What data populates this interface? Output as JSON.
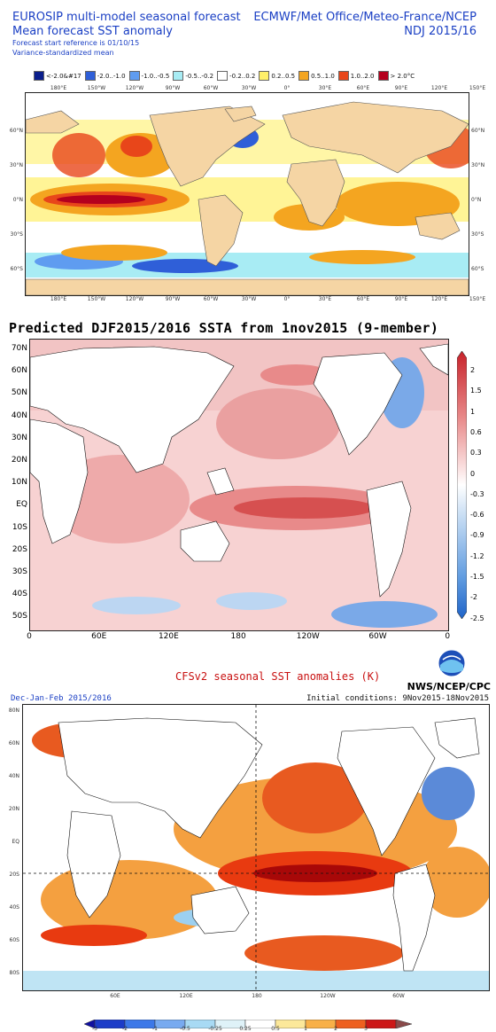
{
  "panel1": {
    "title_left_1": "EUROSIP multi-model seasonal forecast",
    "title_left_2": "Mean forecast SST anomaly",
    "note_1": "Forecast start reference is 01/10/15",
    "note_2": "Variance-standardized mean",
    "title_right_1": "ECMWF/Met Office/Meteo-France/NCEP",
    "title_right_2": "NDJ 2015/16",
    "legend": [
      {
        "label": "<-2.0&#17",
        "color": "#0a1e8c"
      },
      {
        "label": "-2.0..-1.0",
        "color": "#2f5fd8"
      },
      {
        "label": "-1.0..-0.5",
        "color": "#5f9cf0"
      },
      {
        "label": "-0.5..-0.2",
        "color": "#a8ecf4"
      },
      {
        "label": "-0.2..0.2",
        "color": "#ffffff"
      },
      {
        "label": "0.2..0.5",
        "color": "#fff06a"
      },
      {
        "label": "0.5..1.0",
        "color": "#f4a520"
      },
      {
        "label": "1.0..2.0",
        "color": "#e8461a"
      },
      {
        "label": "> 2.0°C",
        "color": "#b4001e"
      }
    ],
    "lon_labels": [
      "180°E",
      "150°W",
      "120°W",
      "90°W",
      "60°W",
      "30°W",
      "0°",
      "30°E",
      "60°E",
      "90°E",
      "120°E",
      "150°E"
    ],
    "lat_labels": [
      "60°N",
      "30°N",
      "0°N",
      "30°S",
      "60°S"
    ]
  },
  "panel2": {
    "title": "Predicted DJF2015/2016 SSTA from 1nov2015 (9-member)",
    "lat_labels": [
      "70N",
      "60N",
      "50N",
      "40N",
      "30N",
      "20N",
      "10N",
      "EQ",
      "10S",
      "20S",
      "30S",
      "40S",
      "50S"
    ],
    "lon_labels": [
      "0",
      "60E",
      "120E",
      "180",
      "120W",
      "60W",
      "0"
    ],
    "colorbar_labels": [
      "2",
      "1.5",
      "1",
      "0.6",
      "0.3",
      "0",
      "-0.3",
      "-0.6",
      "-0.9",
      "-1.2",
      "-1.5",
      "-2",
      "-2.5"
    ]
  },
  "panel3": {
    "title": "CFSv2 seasonal SST anomalies (K)",
    "agency": "NWS/NCEP/CPC",
    "subtitle_left": "Dec-Jan-Feb 2015/2016",
    "subtitle_right": "Initial conditions: 9Nov2015-18Nov2015",
    "lat_labels": [
      "80N",
      "60N",
      "40N",
      "20N",
      "EQ",
      "20S",
      "40S",
      "60S",
      "80S"
    ],
    "lon_labels": [
      "60E",
      "120E",
      "180",
      "120W",
      "60W"
    ],
    "colorbar_labels": [
      "-3",
      "-2",
      "-1",
      "-0.5",
      "-0.25",
      "0.25",
      "0.5",
      "1",
      "2",
      "3"
    ]
  }
}
